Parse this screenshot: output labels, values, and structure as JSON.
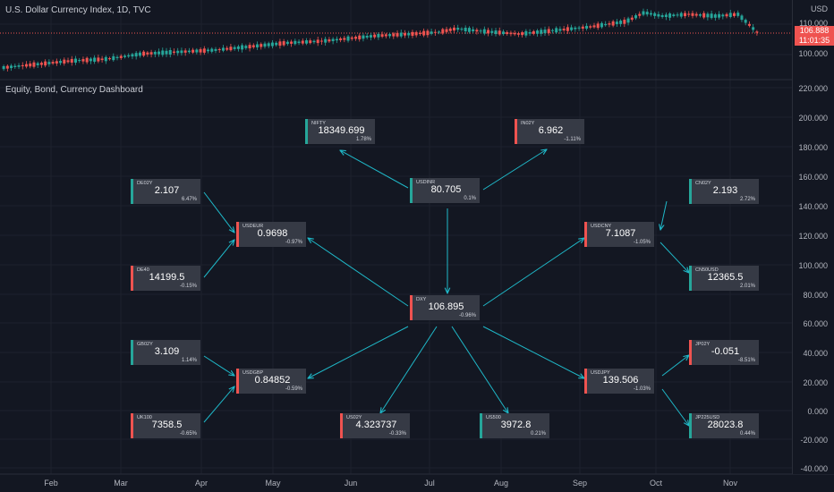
{
  "top_pane": {
    "title": "U.S. Dollar Currency Index, 1D, TVC",
    "currency": "USD",
    "ticks": [
      "110.000",
      "100.000"
    ],
    "last_price": "106.888",
    "countdown": "11:01:35"
  },
  "bottom_pane": {
    "title": "Equity, Bond, Currency Dashboard",
    "ticks": [
      "220.000",
      "200.000",
      "180.000",
      "160.000",
      "140.000",
      "120.000",
      "100.000",
      "80.000",
      "60.000",
      "40.000",
      "20.000",
      "0.000",
      "-20.000",
      "-40.000"
    ]
  },
  "months": [
    "Feb",
    "Mar",
    "Apr",
    "May",
    "Jun",
    "Jul",
    "Aug",
    "Sep",
    "Oct",
    "Nov"
  ],
  "colors": {
    "up": "#26a69a",
    "down": "#ef5350",
    "arrow": "#1fb8c8",
    "box": "#363a45",
    "background": "#131722"
  },
  "dashboard": {
    "nifty": {
      "symbol": "NIFTY",
      "value": "18349.699",
      "change": "1.78%",
      "direction": "up"
    },
    "in02y": {
      "symbol": "IN02Y",
      "value": "6.962",
      "change": "-1.11%",
      "direction": "down"
    },
    "usdinr": {
      "symbol": "USDINR",
      "value": "80.705",
      "change": "0.1%",
      "direction": "up"
    },
    "de02y": {
      "symbol": "DE02Y",
      "value": "2.107",
      "change": "6.47%",
      "direction": "up"
    },
    "usdeur": {
      "symbol": "USDEUR",
      "value": "0.9698",
      "change": "-0.97%",
      "direction": "down"
    },
    "de40": {
      "symbol": "DE40",
      "value": "14199.5",
      "change": "-0.15%",
      "direction": "down"
    },
    "cn02y": {
      "symbol": "CN02Y",
      "value": "2.193",
      "change": "2.72%",
      "direction": "up"
    },
    "usdcny": {
      "symbol": "USDCNY",
      "value": "7.1087",
      "change": "-1.05%",
      "direction": "down"
    },
    "cn50usd": {
      "symbol": "CN50USD",
      "value": "12365.5",
      "change": "2.01%",
      "direction": "up"
    },
    "dxy": {
      "symbol": "DXY",
      "value": "106.895",
      "change": "-0.96%",
      "direction": "down"
    },
    "gb02y": {
      "symbol": "GB02Y",
      "value": "3.109",
      "change": "1.14%",
      "direction": "up"
    },
    "usdgbp": {
      "symbol": "USDGBP",
      "value": "0.84852",
      "change": "-0.59%",
      "direction": "down"
    },
    "uk100": {
      "symbol": "UK100",
      "value": "7358.5",
      "change": "-0.65%",
      "direction": "down"
    },
    "us02y": {
      "symbol": "US02Y",
      "value": "4.323737",
      "change": "-0.33%",
      "direction": "down"
    },
    "us500": {
      "symbol": "US500",
      "value": "3972.8",
      "change": "0.21%",
      "direction": "up"
    },
    "jp02y": {
      "symbol": "JP02Y",
      "value": "-0.051",
      "change": "-8.51%",
      "direction": "down"
    },
    "usdjpy": {
      "symbol": "USDJPY",
      "value": "139.506",
      "change": "-1.03%",
      "direction": "down"
    },
    "jp225usd": {
      "symbol": "JP225USD",
      "value": "28023.8",
      "change": "0.44%",
      "direction": "up"
    }
  }
}
